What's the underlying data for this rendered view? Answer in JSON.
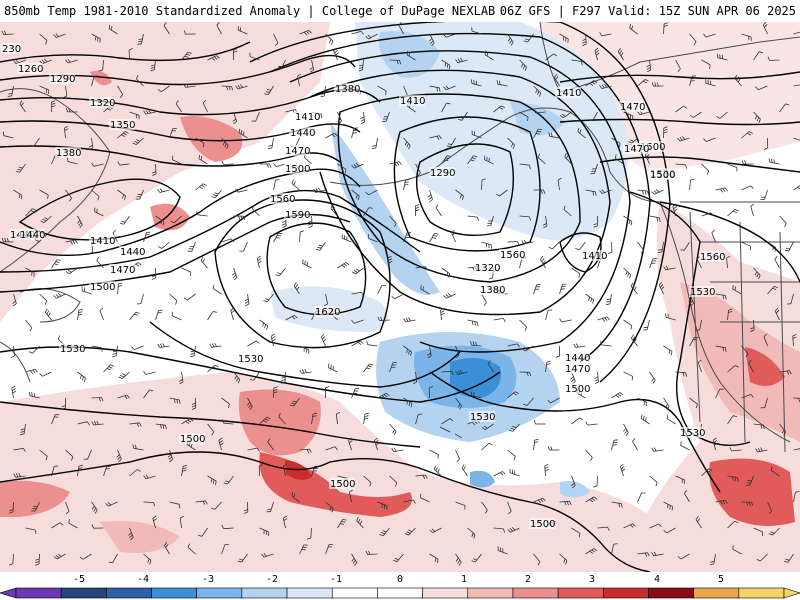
{
  "header": {
    "left": "850mb Temp 1981-2010 Standardized Anomaly | College of DuPage NEXLAB",
    "right": "06Z GFS | F297 Valid: 15Z SUN APR 06 2025"
  },
  "colors": {
    "contour": "#000000",
    "coast": "#4a4a4a",
    "wind_barb": "#333333",
    "cold": [
      "#6a3ab5",
      "#25457e",
      "#2e5fa8",
      "#3a8fd6",
      "#7ab4e8",
      "#b3d3f1",
      "#dce8f6"
    ],
    "warm": [
      "#f7dcdc",
      "#f2b9b9",
      "#eb8f8f",
      "#e15b5b",
      "#c92d2d",
      "#8a0b16",
      "#e8a54c",
      "#f3d36a"
    ]
  },
  "contour_labels": [
    "230",
    "1260",
    "1290",
    "1320",
    "1350",
    "1380",
    "1410",
    "1440",
    "1470",
    "1500",
    "1560",
    "1590",
    "1620",
    "1530",
    "1380",
    "1410",
    "1440",
    "1470",
    "1500",
    "1290",
    "1320",
    "1380",
    "1410",
    "1440",
    "1470",
    "1500",
    "1560",
    "1530",
    "1410",
    "1440",
    "1470",
    "1500",
    "1530",
    "1560",
    "1530",
    "1500",
    "1500",
    "1500",
    "1530",
    "1410",
    "1440",
    "1470",
    "1500",
    "1530"
  ],
  "colorbar": {
    "tick_labels": [
      "-5",
      "-4",
      "-3",
      "-2",
      "-1",
      "0",
      "1",
      "2",
      "3",
      "4",
      "5"
    ],
    "bins": [
      "#6a3ab5",
      "#25457e",
      "#2e5fa8",
      "#3a8fd6",
      "#7ab4e8",
      "#b3d3f1",
      "#dce8f6",
      "#ffffff",
      "#ffffff",
      "#f7dcdc",
      "#f2b9b9",
      "#eb8f8f",
      "#e15b5b",
      "#c92d2d",
      "#8a0b16",
      "#e8a54c",
      "#f3d36a"
    ]
  }
}
